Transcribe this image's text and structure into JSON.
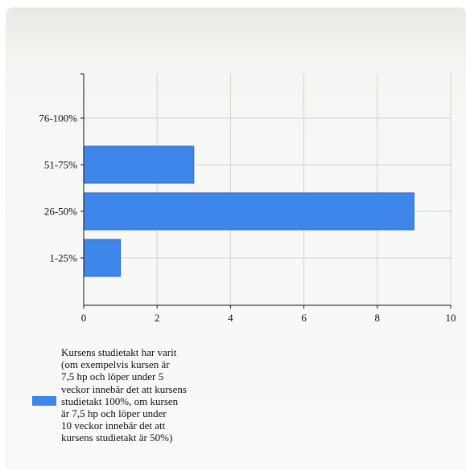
{
  "chart_data": {
    "type": "bar",
    "orientation": "horizontal",
    "categories": [
      "76-100%",
      "51-75%",
      "26-50%",
      "1-25%"
    ],
    "series": [
      {
        "name": "Kursens studietakt har varit (om exempelvis kursen är 7,5 hp och löper under 5 veckor innebär det att kursens studietakt 100%, om kursen är 7,5 hp och löper under 10 veckor innebär det att kursens studietakt är 50%)",
        "values": [
          0,
          3,
          9,
          1
        ],
        "color": "#3f86ea"
      }
    ],
    "x_ticks": [
      "0",
      "2",
      "4",
      "6",
      "8",
      "10"
    ],
    "xlim": [
      0,
      10
    ],
    "grid": true,
    "legend_position": "bottom-left"
  },
  "legend_lines": [
    "Kursens studietakt har varit",
    "(om exempelvis kursen är",
    "7,5 hp och löper under 5",
    "veckor innebär det att kursens",
    "studietakt 100%, om kursen",
    "är 7,5 hp och löper under",
    "10 veckor innebär det att",
    "kursens studietakt är 50%)"
  ]
}
